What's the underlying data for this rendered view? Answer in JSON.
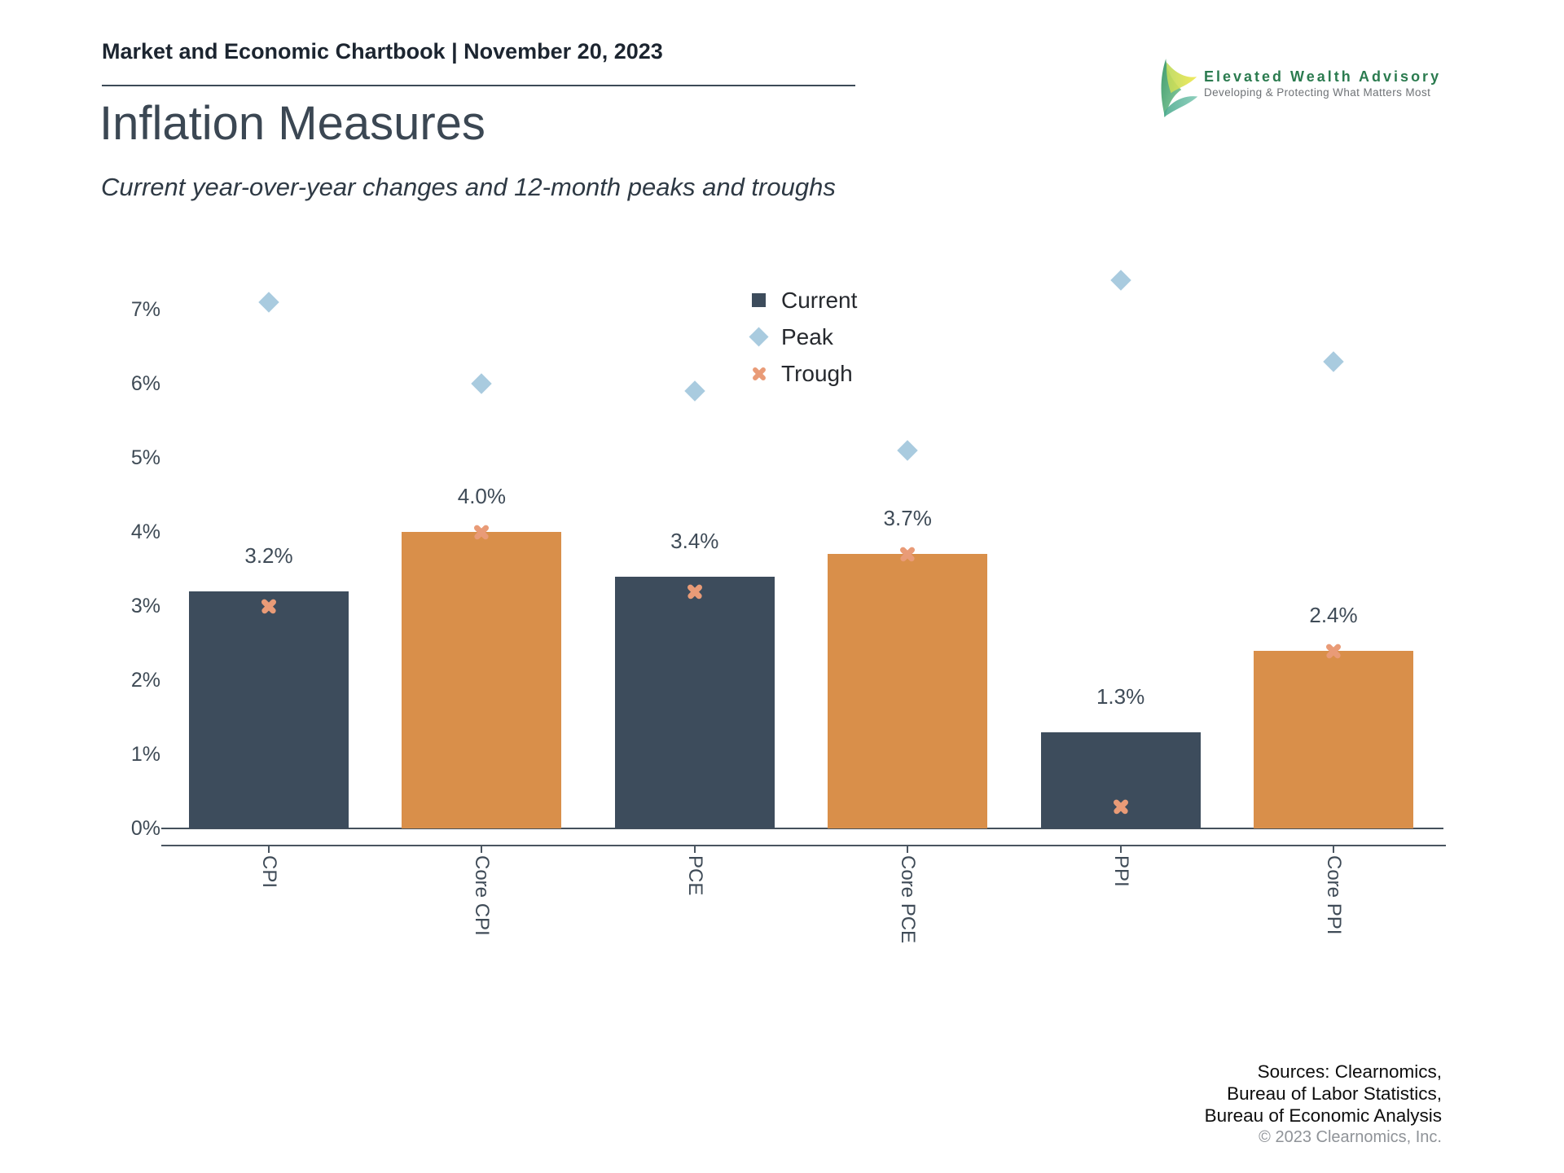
{
  "header": {
    "text": "Market and Economic Chartbook | November 20, 2023"
  },
  "logo": {
    "name": "Elevated Wealth Advisory",
    "tagline": "Developing & Protecting What Matters Most",
    "accent_green": "#2b7b4f"
  },
  "title": "Inflation Measures",
  "subtitle": "Current year-over-year changes and 12-month peaks and troughs",
  "chart_data": {
    "type": "bar",
    "categories": [
      "CPI",
      "Core CPI",
      "PCE",
      "Core PCE",
      "PPI",
      "Core PPI"
    ],
    "series": [
      {
        "name": "Current",
        "values": [
          3.2,
          4.0,
          3.4,
          3.7,
          1.3,
          2.4
        ]
      },
      {
        "name": "Peak",
        "values": [
          7.1,
          6.0,
          5.9,
          5.1,
          7.4,
          6.3
        ]
      },
      {
        "name": "Trough",
        "values": [
          3.0,
          4.0,
          3.2,
          3.7,
          0.3,
          2.4
        ]
      }
    ],
    "bar_labels": [
      "3.2%",
      "4.0%",
      "3.4%",
      "3.7%",
      "1.3%",
      "2.4%"
    ],
    "bar_colors": [
      "#3d4c5c",
      "#d98f4a",
      "#3d4c5c",
      "#d98f4a",
      "#3d4c5c",
      "#d98f4a"
    ],
    "y_ticks": [
      "0%",
      "1%",
      "2%",
      "3%",
      "4%",
      "5%",
      "6%",
      "7%"
    ],
    "ylim": [
      0,
      7.9
    ],
    "grid": false,
    "legend_position": "upper-center",
    "legend": [
      {
        "label": "Current",
        "marker": "square",
        "color": "#3d4c5c"
      },
      {
        "label": "Peak",
        "marker": "diamond",
        "color": "#a9cbdf"
      },
      {
        "label": "Trough",
        "marker": "x",
        "color": "#e99b77"
      }
    ]
  },
  "footer": {
    "sources_lines": [
      "Sources: Clearnomics,",
      "Bureau of Labor Statistics,",
      "Bureau of Economic Analysis"
    ],
    "copyright": "© 2023 Clearnomics, Inc."
  }
}
